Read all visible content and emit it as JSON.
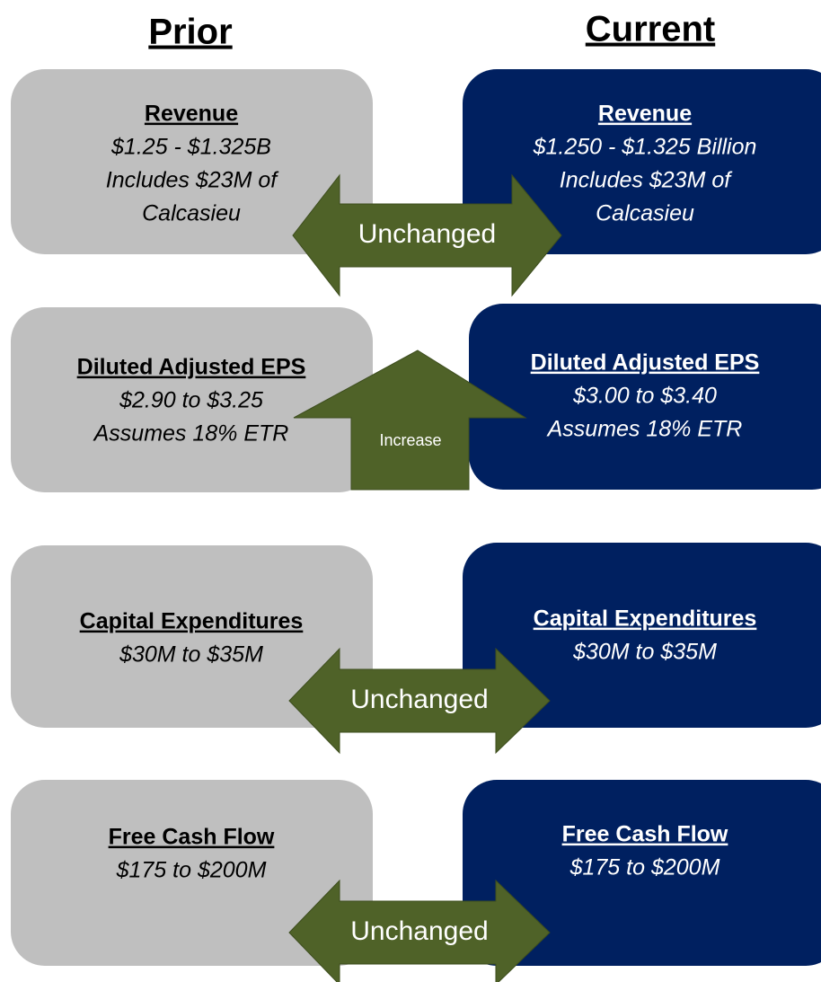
{
  "header": {
    "prior": "Prior",
    "current": "Current"
  },
  "rows": [
    {
      "prior": {
        "title": "Revenue",
        "lines": [
          "$1.25 - $1.325B",
          "Includes $23M of",
          "Calcasieu"
        ]
      },
      "current": {
        "title": "Revenue",
        "lines": [
          "$1.250 - $1.325 Billion",
          "Includes $23M of",
          "Calcasieu"
        ]
      },
      "change": "Unchanged"
    },
    {
      "prior": {
        "title": "Diluted Adjusted EPS",
        "lines": [
          "$2.90 to $3.25",
          "Assumes 18% ETR"
        ]
      },
      "current": {
        "title": "Diluted Adjusted EPS",
        "lines": [
          "$3.00 to $3.40",
          "Assumes 18% ETR"
        ]
      },
      "change": "Increase"
    },
    {
      "prior": {
        "title": "Capital Expenditures",
        "lines": [
          "$30M to $35M"
        ]
      },
      "current": {
        "title": "Capital Expenditures",
        "lines": [
          "$30M to $35M"
        ]
      },
      "change": "Unchanged"
    },
    {
      "prior": {
        "title": "Free Cash Flow",
        "lines": [
          "$175 to $200M"
        ]
      },
      "current": {
        "title": "Free Cash Flow",
        "lines": [
          "$175 to $200M"
        ]
      },
      "change": "Unchanged"
    }
  ]
}
